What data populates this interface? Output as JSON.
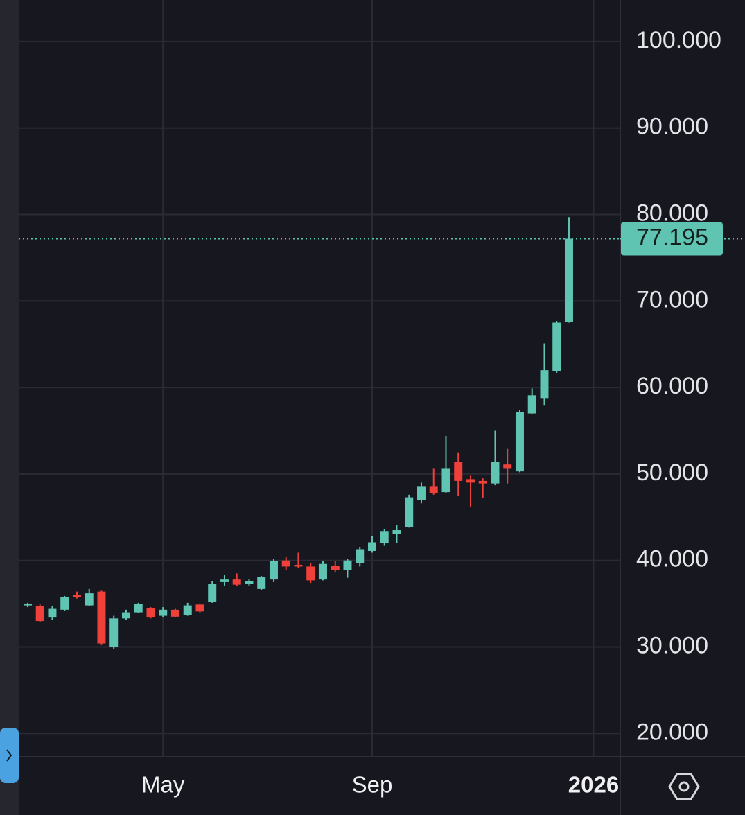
{
  "chart_data": {
    "type": "candlestick",
    "categories": [
      null,
      null,
      null,
      null,
      null,
      null,
      null,
      null,
      null,
      null,
      null,
      null,
      null,
      null,
      null,
      null,
      null,
      null,
      null,
      null,
      null,
      null,
      null,
      null,
      null,
      null,
      null,
      null,
      null,
      null,
      null,
      null,
      null,
      null,
      null,
      null,
      null,
      null,
      null,
      null,
      null,
      null,
      null,
      null,
      null
    ],
    "series": [
      {
        "open": [
          34.8,
          34.7,
          33.4,
          34.3,
          36.0,
          34.8,
          36.4,
          30.0,
          33.3,
          34.0,
          34.5,
          33.6,
          34.3,
          33.7,
          34.9,
          35.2,
          37.5,
          37.8,
          37.3,
          36.7,
          37.8,
          40.0,
          39.5,
          39.3,
          37.8,
          39.4,
          38.9,
          39.7,
          41.1,
          42.0,
          43.1,
          43.9,
          47.0,
          48.6,
          47.9,
          51.4,
          49.4,
          49.2,
          48.9,
          51.1,
          50.3,
          57.0,
          58.7,
          61.9,
          67.6
        ],
        "high": [
          35.1,
          34.9,
          34.7,
          35.9,
          36.4,
          36.7,
          36.5,
          33.6,
          34.3,
          35.1,
          34.6,
          34.6,
          34.4,
          35.1,
          35.0,
          37.6,
          38.3,
          38.5,
          37.8,
          38.2,
          40.2,
          40.4,
          40.9,
          39.7,
          39.9,
          39.9,
          40.2,
          41.5,
          42.8,
          43.6,
          44.1,
          47.6,
          49.0,
          50.6,
          54.4,
          52.5,
          49.8,
          49.5,
          55.0,
          52.9,
          57.4,
          59.9,
          65.1,
          67.7,
          79.7
        ],
        "low": [
          34.6,
          32.9,
          33.1,
          34.2,
          35.6,
          34.7,
          30.3,
          29.8,
          33.1,
          33.9,
          33.3,
          33.4,
          33.4,
          33.6,
          34.0,
          35.1,
          37.1,
          37.0,
          37.1,
          36.6,
          37.5,
          38.9,
          39.1,
          37.4,
          37.7,
          38.6,
          38.0,
          39.3,
          40.9,
          41.7,
          42.0,
          43.8,
          46.6,
          47.6,
          47.8,
          47.5,
          46.2,
          47.2,
          48.7,
          48.9,
          50.2,
          56.9,
          57.9,
          61.7,
          67.5
        ],
        "close": [
          35.0,
          33.0,
          34.4,
          35.8,
          35.8,
          36.2,
          30.4,
          33.3,
          34.0,
          35.0,
          33.4,
          34.3,
          33.5,
          34.8,
          34.1,
          37.3,
          37.8,
          37.2,
          37.6,
          38.1,
          39.9,
          39.3,
          39.3,
          37.7,
          39.6,
          38.9,
          40.0,
          41.3,
          42.1,
          43.4,
          43.5,
          47.3,
          48.6,
          47.8,
          50.6,
          49.2,
          49.0,
          48.9,
          51.4,
          50.6,
          57.2,
          59.1,
          62.0,
          67.5,
          77.195
        ]
      }
    ],
    "up_color": "#5fc4b2",
    "down_color": "#f0403a",
    "last_price": 77.195,
    "ylim": [
      17.3,
      104.8
    ],
    "yticks": [
      {
        "value": 20,
        "label": "20.000"
      },
      {
        "value": 30,
        "label": "30.000"
      },
      {
        "value": 40,
        "label": "40.000"
      },
      {
        "value": 50,
        "label": "50.000"
      },
      {
        "value": 60,
        "label": "60.000"
      },
      {
        "value": 70,
        "label": "70.000"
      },
      {
        "value": 80,
        "label": "80.000"
      },
      {
        "value": 90,
        "label": "90.000"
      },
      {
        "value": 100,
        "label": "100.000"
      }
    ],
    "xlim": [
      -0.73,
      48.17
    ],
    "xticks": [
      {
        "value": 11,
        "label": "May"
      },
      {
        "value": 28,
        "label": "Sep"
      },
      {
        "value": 46,
        "label": "2026"
      }
    ],
    "grid": true
  }
}
